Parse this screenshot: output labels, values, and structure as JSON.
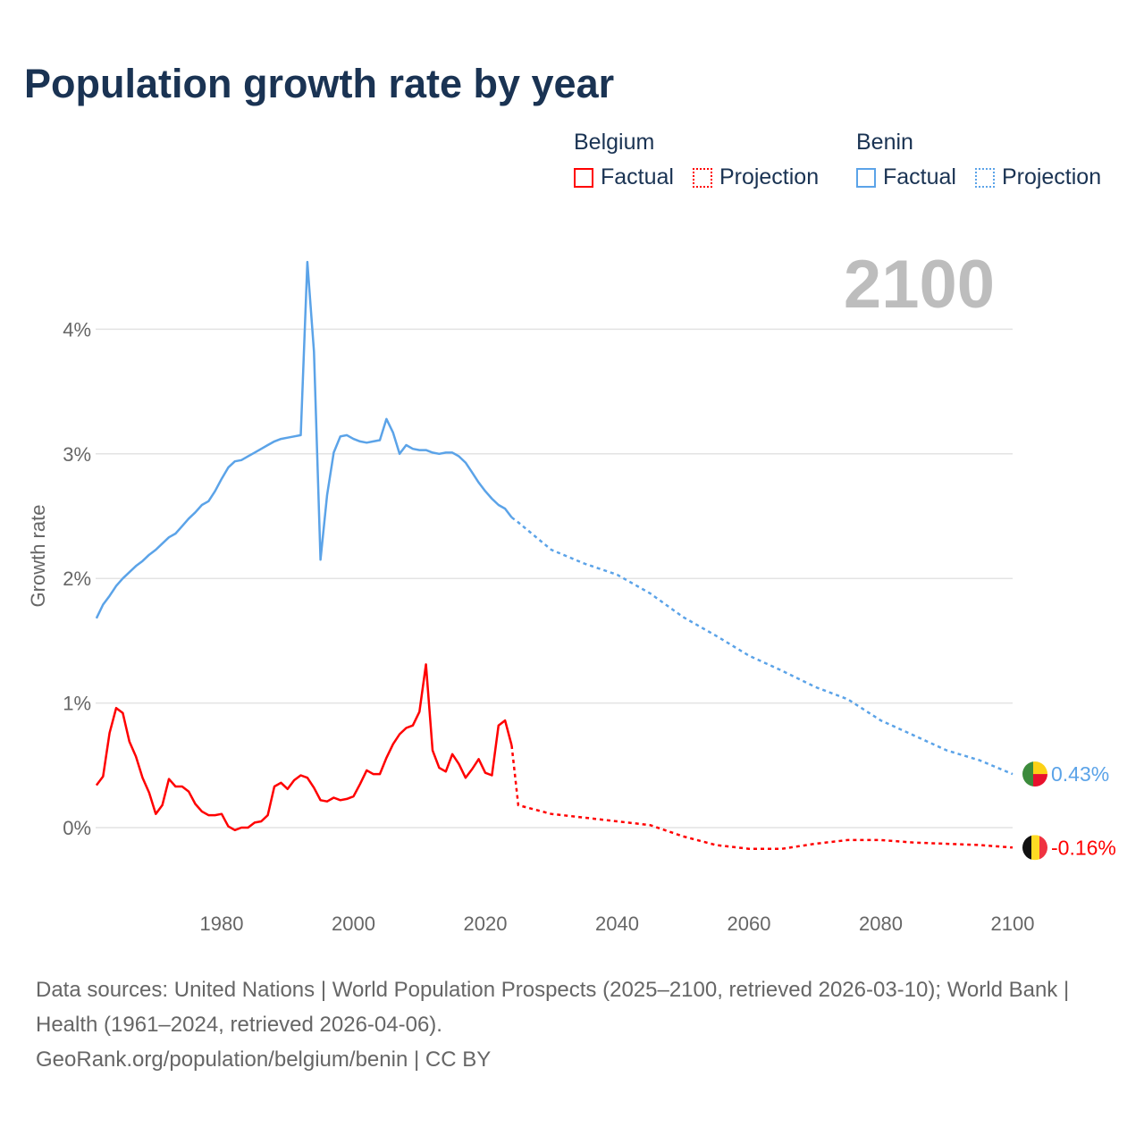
{
  "title": "Population growth rate by year",
  "year_label": "2100",
  "legend": {
    "groups": [
      {
        "name": "Belgium",
        "factual": "Factual",
        "projection": "Projection",
        "color": "#ff0000"
      },
      {
        "name": "Benin",
        "factual": "Factual",
        "projection": "Projection",
        "color": "#5ba3e8"
      }
    ]
  },
  "footer": {
    "sources": "Data sources: United Nations | World Population Prospects (2025–2100, retrieved 2026-03-10); World Bank | Health (1961–2024, retrieved 2026-04-06).",
    "credit": "GeoRank.org/population/belgium/benin | CC BY"
  },
  "chart_data": {
    "type": "line",
    "title": "Population growth rate by year",
    "xlabel": "",
    "ylabel": "Growth rate",
    "xlim": [
      1961,
      2100
    ],
    "ylim": [
      -0.5,
      4.8
    ],
    "x_ticks": [
      "1980",
      "2000",
      "2020",
      "2040",
      "2060",
      "2080",
      "2100"
    ],
    "y_ticks": [
      "0%",
      "1%",
      "2%",
      "3%",
      "4%"
    ],
    "grid": true,
    "end_labels": {
      "Benin": "0.43%",
      "Belgium": "-0.16%"
    },
    "series": [
      {
        "name": "Benin",
        "color": "#5ba3e8",
        "factual": {
          "start_year": 1961,
          "values": [
            1.68,
            1.79,
            1.86,
            1.94,
            2.0,
            2.05,
            2.1,
            2.14,
            2.19,
            2.23,
            2.28,
            2.33,
            2.36,
            2.42,
            2.48,
            2.53,
            2.59,
            2.62,
            2.7,
            2.8,
            2.89,
            2.94,
            2.95,
            2.98,
            3.01,
            3.04,
            3.07,
            3.1,
            3.12,
            3.13,
            3.14,
            3.15,
            4.54,
            3.82,
            2.15,
            2.67,
            3.01,
            3.14,
            3.15,
            3.12,
            3.1,
            3.09,
            3.1,
            3.11,
            3.28,
            3.17,
            3.0,
            3.07,
            3.04,
            3.03,
            3.03,
            3.01,
            3.0,
            3.01,
            3.01,
            2.98,
            2.93,
            2.85,
            2.77,
            2.7,
            2.64,
            2.59,
            2.56,
            2.49
          ]
        },
        "projection": {
          "years": [
            2024,
            2025,
            2030,
            2035,
            2040,
            2045,
            2050,
            2055,
            2060,
            2065,
            2070,
            2075,
            2080,
            2085,
            2090,
            2095,
            2100
          ],
          "values": [
            2.49,
            2.45,
            2.23,
            2.12,
            2.03,
            1.88,
            1.69,
            1.54,
            1.38,
            1.26,
            1.13,
            1.03,
            0.86,
            0.74,
            0.62,
            0.54,
            0.43
          ]
        }
      },
      {
        "name": "Belgium",
        "color": "#ff0000",
        "factual": {
          "start_year": 1961,
          "values": [
            0.34,
            0.41,
            0.76,
            0.96,
            0.92,
            0.69,
            0.57,
            0.4,
            0.28,
            0.11,
            0.18,
            0.39,
            0.33,
            0.33,
            0.29,
            0.19,
            0.13,
            0.1,
            0.1,
            0.11,
            0.01,
            -0.02,
            0.0,
            0.0,
            0.04,
            0.05,
            0.1,
            0.33,
            0.36,
            0.31,
            0.38,
            0.42,
            0.4,
            0.32,
            0.22,
            0.21,
            0.24,
            0.22,
            0.23,
            0.25,
            0.35,
            0.46,
            0.43,
            0.43,
            0.56,
            0.67,
            0.75,
            0.8,
            0.82,
            0.93,
            1.31,
            0.62,
            0.48,
            0.45,
            0.59,
            0.51,
            0.4,
            0.47,
            0.55,
            0.44,
            0.42,
            0.82,
            0.86,
            0.66
          ]
        },
        "projection": {
          "years": [
            2024,
            2025,
            2030,
            2035,
            2040,
            2045,
            2050,
            2055,
            2060,
            2065,
            2070,
            2075,
            2080,
            2085,
            2090,
            2095,
            2100
          ],
          "values": [
            0.66,
            0.18,
            0.11,
            0.08,
            0.05,
            0.02,
            -0.07,
            -0.14,
            -0.17,
            -0.17,
            -0.13,
            -0.1,
            -0.1,
            -0.12,
            -0.13,
            -0.14,
            -0.16
          ]
        }
      }
    ]
  }
}
